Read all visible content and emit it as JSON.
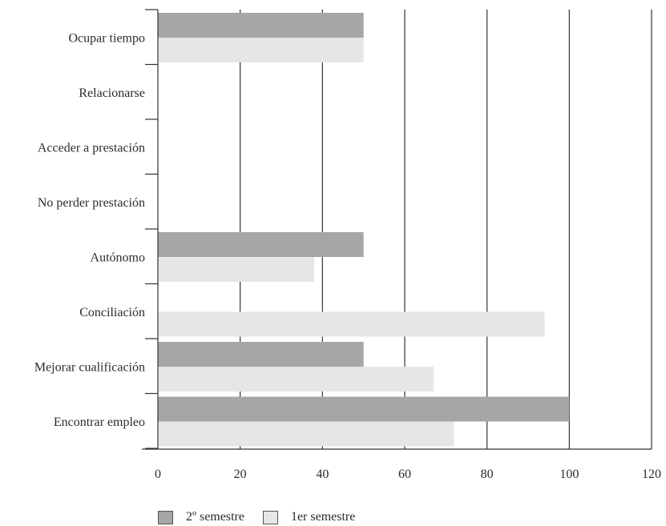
{
  "chart_data": {
    "type": "bar",
    "orientation": "horizontal",
    "categories": [
      "Ocupar tiempo",
      "Relacionarse",
      "Acceder a prestación",
      "No perder prestación",
      "Autónomo",
      "Conciliación",
      "Mejorar cualificación",
      "Encontrar empleo"
    ],
    "series": [
      {
        "name": "2º semestre",
        "color": "#a6a6a6",
        "values": [
          50,
          0,
          0,
          0,
          50,
          0,
          50,
          100
        ]
      },
      {
        "name": "1er semestre",
        "color": "#e6e6e6",
        "values": [
          50,
          0,
          0,
          0,
          38,
          94,
          67,
          72
        ]
      }
    ],
    "xlim": [
      0,
      120
    ],
    "x_ticks": [
      "0",
      "20",
      "40",
      "60",
      "80",
      "100",
      "120"
    ],
    "grid": "vertical",
    "legend": "bottom"
  }
}
